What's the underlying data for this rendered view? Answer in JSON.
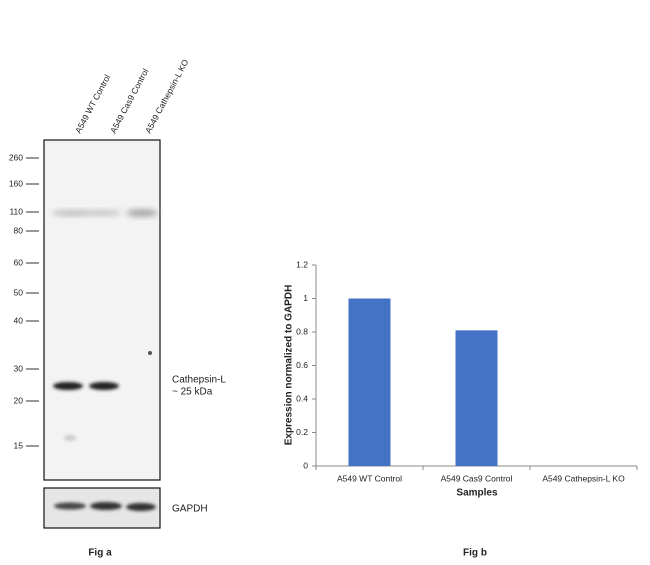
{
  "blot": {
    "lanes": [
      "A549 WT Control",
      "A549 Cas9 Control",
      "A549 Cathepsin-L KO"
    ],
    "markers": [
      "260",
      "160",
      "110",
      "80",
      "60",
      "50",
      "40",
      "30",
      "20",
      "15"
    ],
    "band_label": "Cathepsin-L",
    "band_size": "~ 25 kDa",
    "loading_control": "GAPDH",
    "caption": "Fig a"
  },
  "chart_data": {
    "type": "bar",
    "caption": "Fig b",
    "x_label": "Samples",
    "y_label": "Expression normalized to GAPDH",
    "categories": [
      "A549 WT Control",
      "A549 Cas9 Control",
      "A549 Cathepsin-L KO"
    ],
    "values": [
      1,
      0.81,
      0
    ],
    "color": "#4472c4",
    "ylim": [
      0,
      1.2
    ],
    "yticks": [
      0,
      0.2,
      0.4,
      0.6,
      0.8,
      1,
      1.2
    ]
  }
}
